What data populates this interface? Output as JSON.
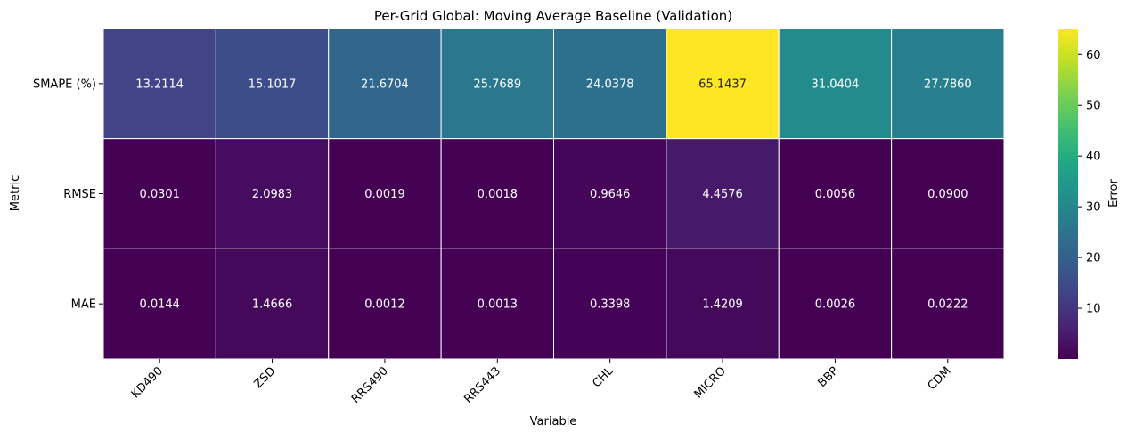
{
  "chart_data": {
    "type": "heatmap",
    "title": "Per-Grid Global: Moving Average Baseline (Validation)",
    "xlabel": "Variable",
    "ylabel": "Metric",
    "x_categories": [
      "KD490",
      "ZSD",
      "RRS490",
      "RRS443",
      "CHL",
      "MICRO",
      "BBP",
      "CDM"
    ],
    "y_categories": [
      "SMAPE (%)",
      "RMSE",
      "MAE"
    ],
    "values": [
      [
        13.2114,
        15.1017,
        21.6704,
        25.7689,
        24.0378,
        65.1437,
        31.0404,
        27.786
      ],
      [
        0.0301,
        2.0983,
        0.0019,
        0.0018,
        0.9646,
        4.4576,
        0.0056,
        0.09
      ],
      [
        0.0144,
        1.4666,
        0.0012,
        0.0013,
        0.3398,
        1.4209,
        0.0026,
        0.0222
      ]
    ],
    "cell_labels": [
      [
        "13.2114",
        "15.1017",
        "21.6704",
        "25.7689",
        "24.0378",
        "65.1437",
        "31.0404",
        "27.7860"
      ],
      [
        "0.0301",
        "2.0983",
        "0.0019",
        "0.0018",
        "0.9646",
        "4.4576",
        "0.0056",
        "0.0900"
      ],
      [
        "0.0144",
        "1.4666",
        "0.0012",
        "0.0013",
        "0.3398",
        "1.4209",
        "0.0026",
        "0.0222"
      ]
    ],
    "colorbar": {
      "label": "Error",
      "colormap": "viridis",
      "vmin": 0.0012,
      "vmax": 65.1437,
      "ticks": [
        10,
        20,
        30,
        40,
        50,
        60
      ],
      "tick_labels": [
        "10",
        "20",
        "30",
        "40",
        "50",
        "60"
      ]
    },
    "grid": false,
    "cell_border_color": "#ffffff"
  }
}
